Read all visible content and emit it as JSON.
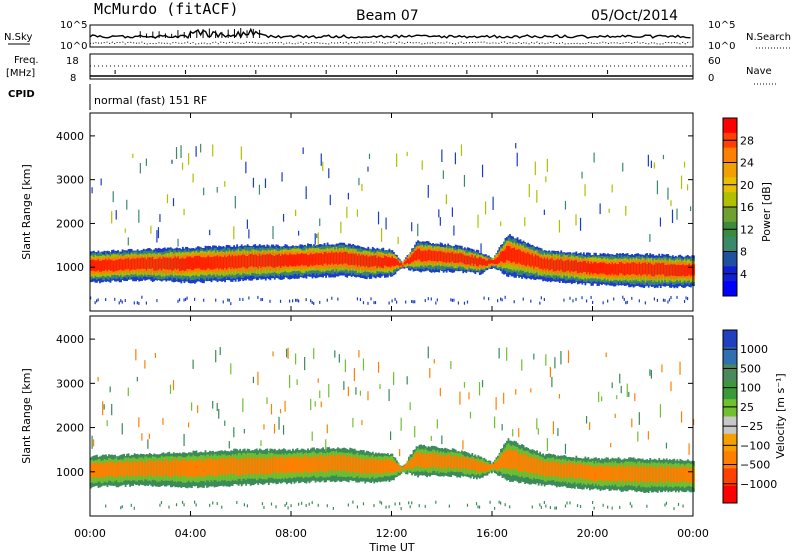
{
  "header": {
    "station": "McMurdo (fitACF)",
    "beam": "Beam 07",
    "date": "05/Oct/2014"
  },
  "top_panels": {
    "nsky_label": "N.Sky",
    "nsearch_label": "N.Search",
    "freq_label": "Freq.",
    "freq_unit": "[MHz]",
    "nave_label": "Nave",
    "cpid_label": "CPID",
    "cpid_text": "normal (fast) 151 RF",
    "noise_ticks_left": [
      "10^5",
      "10^0"
    ],
    "noise_ticks_right": [
      "10^5",
      "10^0"
    ],
    "freq_ticks_left": [
      "18",
      "8"
    ],
    "nave_ticks_right": [
      "60",
      "0"
    ]
  },
  "chart_data": [
    {
      "type": "heatmap",
      "name": "power",
      "ylabel": "Slant Range [km]",
      "xlabel": "",
      "ylim": [
        0,
        4500
      ],
      "yticks": [
        "4000",
        "3000",
        "2000",
        "1000"
      ],
      "ytick_values": [
        4000,
        3000,
        2000,
        1000
      ],
      "colorbar_label": "Power [dB]",
      "colorbar_ticks": [
        "28",
        "24",
        "20",
        "16",
        "12",
        "8",
        "4"
      ],
      "colorbar_colors": [
        "#ff0000",
        "#ff4000",
        "#ff8000",
        "#f2a000",
        "#e8c000",
        "#b0c000",
        "#70a030",
        "#3c8a3c",
        "#3a8a6a",
        "#2050a0",
        "#1020d0",
        "#0000ff"
      ],
      "band_layer_colors": [
        "#1a3cc8",
        "#3a8a6a",
        "#b0c000",
        "#ff8000",
        "#ff2000"
      ],
      "band": [
        {
          "t": 0.0,
          "lo": 650,
          "hi": 1350
        },
        {
          "t": 2.0,
          "lo": 700,
          "hi": 1400
        },
        {
          "t": 4.0,
          "lo": 650,
          "hi": 1450
        },
        {
          "t": 6.0,
          "lo": 700,
          "hi": 1500
        },
        {
          "t": 8.0,
          "lo": 750,
          "hi": 1500
        },
        {
          "t": 10.0,
          "lo": 800,
          "hi": 1550
        },
        {
          "t": 11.0,
          "lo": 750,
          "hi": 1450
        },
        {
          "t": 12.0,
          "lo": 800,
          "hi": 1400
        },
        {
          "t": 12.4,
          "lo": 1000,
          "hi": 1100
        },
        {
          "t": 13.0,
          "lo": 900,
          "hi": 1600
        },
        {
          "t": 14.5,
          "lo": 900,
          "hi": 1500
        },
        {
          "t": 15.5,
          "lo": 850,
          "hi": 1350
        },
        {
          "t": 16.0,
          "lo": 1000,
          "hi": 1200
        },
        {
          "t": 16.6,
          "lo": 800,
          "hi": 1750
        },
        {
          "t": 18.0,
          "lo": 700,
          "hi": 1400
        },
        {
          "t": 20.0,
          "lo": 600,
          "hi": 1300
        },
        {
          "t": 22.0,
          "lo": 550,
          "hi": 1300
        },
        {
          "t": 24.0,
          "lo": 550,
          "hi": 1250
        }
      ]
    },
    {
      "type": "heatmap",
      "name": "velocity",
      "ylabel": "Slant Range [km]",
      "xlabel": "Time UT",
      "ylim": [
        0,
        4500
      ],
      "yticks": [
        "4000",
        "3000",
        "2000",
        "1000"
      ],
      "ytick_values": [
        4000,
        3000,
        2000,
        1000
      ],
      "colorbar_label": "Velocity [m s⁻¹]",
      "colorbar_ticks": [
        "1000",
        "500",
        "100",
        "25",
        "−25",
        "−100",
        "−500",
        "−1000"
      ],
      "colorbar_colors": [
        "#2040c0",
        "#3070b0",
        "#4a8a5a",
        "#3a9a3a",
        "#70c030",
        "#c8c8c8",
        "#f5a000",
        "#ff8000",
        "#ff4000",
        "#ff0000"
      ],
      "band_layer_colors": [
        "#3a8a5a",
        "#70c030",
        "#ff8000"
      ],
      "band": [
        {
          "t": 0.0,
          "lo": 650,
          "hi": 1350
        },
        {
          "t": 2.0,
          "lo": 700,
          "hi": 1400
        },
        {
          "t": 4.0,
          "lo": 650,
          "hi": 1450
        },
        {
          "t": 6.0,
          "lo": 700,
          "hi": 1500
        },
        {
          "t": 8.0,
          "lo": 750,
          "hi": 1500
        },
        {
          "t": 10.0,
          "lo": 800,
          "hi": 1550
        },
        {
          "t": 11.0,
          "lo": 750,
          "hi": 1450
        },
        {
          "t": 12.0,
          "lo": 800,
          "hi": 1400
        },
        {
          "t": 12.4,
          "lo": 1000,
          "hi": 1100
        },
        {
          "t": 13.0,
          "lo": 900,
          "hi": 1600
        },
        {
          "t": 14.5,
          "lo": 900,
          "hi": 1500
        },
        {
          "t": 15.5,
          "lo": 850,
          "hi": 1350
        },
        {
          "t": 16.0,
          "lo": 1000,
          "hi": 1200
        },
        {
          "t": 16.6,
          "lo": 800,
          "hi": 1750
        },
        {
          "t": 18.0,
          "lo": 700,
          "hi": 1400
        },
        {
          "t": 20.0,
          "lo": 600,
          "hi": 1300
        },
        {
          "t": 22.0,
          "lo": 550,
          "hi": 1300
        },
        {
          "t": 24.0,
          "lo": 550,
          "hi": 1250
        }
      ]
    }
  ],
  "x_axis": {
    "xlim": [
      0,
      24
    ],
    "tick_labels": [
      "00:00",
      "04:00",
      "08:00",
      "12:00",
      "16:00",
      "20:00",
      "00:00"
    ],
    "tick_values": [
      0,
      4,
      8,
      12,
      16,
      20,
      24
    ]
  }
}
